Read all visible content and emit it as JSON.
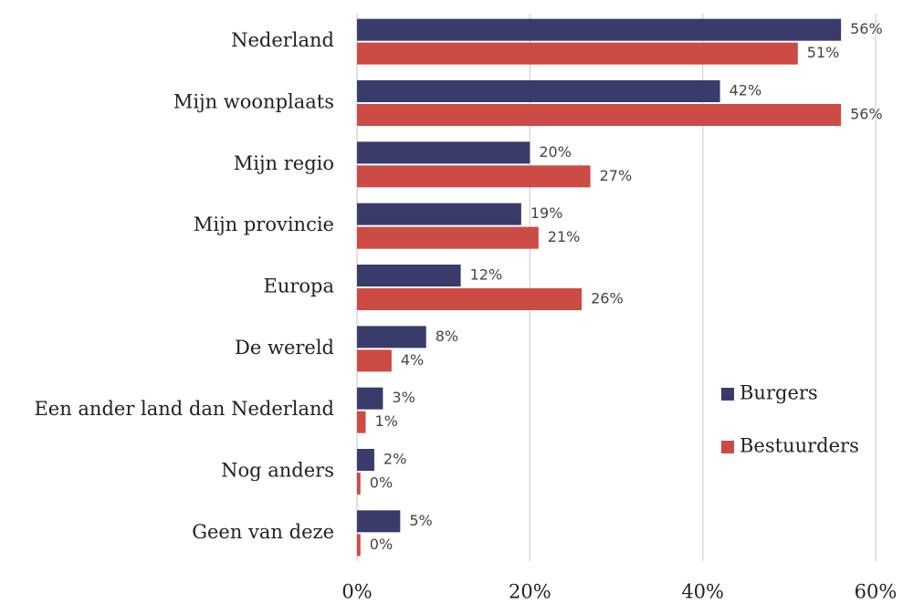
{
  "chart_data": {
    "type": "barh",
    "categories": [
      "Nederland",
      "Mijn woonplaats",
      "Mijn regio",
      "Mijn provincie",
      "Europa",
      "De wereld",
      "Een ander land dan Nederland",
      "Nog anders",
      "Geen van deze"
    ],
    "series": [
      {
        "name": "Burgers",
        "color": "#393c6b",
        "values": [
          56,
          42,
          20,
          19,
          12,
          8,
          3,
          2,
          5
        ],
        "value_labels": [
          "56%",
          "42%",
          "20%",
          "19%",
          "12%",
          "8%",
          "3%",
          "2%",
          "5%"
        ]
      },
      {
        "name": "Bestuurders",
        "color": "#cc4b45",
        "values": [
          51,
          56,
          27,
          21,
          26,
          4,
          1,
          0.4,
          0.4
        ],
        "value_labels": [
          "51%",
          "56%",
          "27%",
          "21%",
          "26%",
          "4%",
          "1%",
          "0%",
          "0%"
        ]
      }
    ],
    "xlim": [
      0,
      60
    ],
    "xticks": [
      {
        "value": 0,
        "label": "0%"
      },
      {
        "value": 20,
        "label": "20%"
      },
      {
        "value": 40,
        "label": "40%"
      },
      {
        "value": 60,
        "label": "60%"
      }
    ],
    "grid": true,
    "legend": "right"
  }
}
